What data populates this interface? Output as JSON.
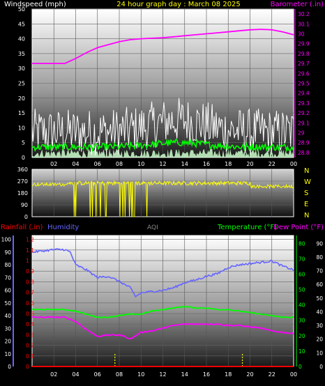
{
  "header": {
    "left_title": "Windspeed (mph)",
    "center_title": "24 hour graph day : March 08 2025",
    "right_title": "Barometer (.in)"
  },
  "colors": {
    "wind_title": "#ffffff",
    "center_title": "#ffff00",
    "baro": "#ff00ff",
    "wind_gust": "#ffffff",
    "wind_avg": "#00ff00",
    "wind_low": "#ccffcc",
    "direction": "#ffff00",
    "rain": "#ff0000",
    "humidity": "#6666ff",
    "aqi": "#888888",
    "temperature": "#00ff00",
    "dewpoint": "#ff00ff",
    "axis_text": "#ffffff"
  },
  "chart_data": [
    {
      "type": "line",
      "name": "wind-and-barometer",
      "x_tick_labels": [
        "02",
        "04",
        "06",
        "08",
        "10",
        "12",
        "14",
        "16",
        "18",
        "20",
        "22",
        "00"
      ],
      "y_left": {
        "label": "Windspeed (mph)",
        "ticks": [
          0,
          5,
          10,
          15,
          20,
          25,
          30,
          35,
          40,
          45,
          50
        ],
        "range": [
          0,
          50
        ]
      },
      "y_right": {
        "label": "Barometer (.in)",
        "ticks": [
          "28.8",
          "28.9",
          "29",
          "29.1",
          "29.2",
          "29.3",
          "29.4",
          "29.5",
          "29.6",
          "29.7",
          "29.8",
          "29.9",
          "30",
          "30.1",
          "30.2"
        ],
        "range": [
          28.75,
          30.25
        ]
      },
      "series": [
        {
          "key": "barometer",
          "axis": "right",
          "x": [
            0,
            1,
            2,
            3,
            4,
            5,
            6,
            7,
            8,
            9,
            10,
            11,
            12,
            13,
            14,
            15,
            16,
            17,
            18,
            19,
            20,
            21,
            22,
            23,
            24
          ],
          "values": [
            29.7,
            29.7,
            29.7,
            29.7,
            29.75,
            29.81,
            29.86,
            29.89,
            29.92,
            29.94,
            29.95,
            29.955,
            29.96,
            29.97,
            29.98,
            29.99,
            30.0,
            30.01,
            30.02,
            30.03,
            30.04,
            30.045,
            30.04,
            30.02,
            29.99
          ]
        },
        {
          "key": "gust",
          "axis": "left",
          "kind": "noisy",
          "base": 8.5,
          "spread": 8,
          "extra_peak": 4
        },
        {
          "key": "average",
          "axis": "left",
          "kind": "noisy",
          "base": 3.5,
          "spread": 1.2
        },
        {
          "key": "low",
          "axis": "left",
          "kind": "noisy",
          "base": 1.5,
          "spread": 1.5
        }
      ]
    },
    {
      "type": "line",
      "name": "wind-direction",
      "x_tick_labels": [],
      "y_left": {
        "ticks": [
          0,
          90,
          180,
          270,
          360
        ],
        "range": [
          0,
          360
        ]
      },
      "compass_labels": [
        "N",
        "W",
        "S",
        "E",
        "N"
      ],
      "series": [
        {
          "key": "direction",
          "base": 255,
          "spread": 30,
          "dropouts_between_hours": [
            3.8,
            11.0
          ]
        }
      ]
    },
    {
      "type": "line",
      "name": "rain-humidity-temperature",
      "legend": {
        "rain": "Rainfall (.in)",
        "humidity": "Humidity",
        "aqi": "AQI",
        "temperature": "Temperature (°F)",
        "dewpoint": "Dew Point (°F)"
      },
      "x_tick_labels": [
        "02",
        "04",
        "06",
        "08",
        "10",
        "12",
        "14",
        "16",
        "18",
        "20",
        "22",
        "00"
      ],
      "y_humidity": {
        "ticks": [
          0,
          10,
          20,
          30,
          40,
          50,
          60,
          70,
          80,
          90,
          100
        ],
        "range": [
          0,
          100
        ]
      },
      "y_rain": {
        "ticks": [
          "0",
          "0.1",
          "0.2",
          "0.3",
          "0.4",
          "0.5",
          "0.6",
          "0.7",
          "0.8",
          "0.9",
          "1",
          "1.1",
          "1.2"
        ],
        "range": [
          0,
          1.2
        ]
      },
      "y_temp": {
        "ticks": [
          0,
          10,
          20,
          30,
          40,
          50,
          60,
          70,
          80
        ],
        "range": [
          0,
          80
        ]
      },
      "y_dew": {
        "ticks": [
          0,
          10,
          20,
          30,
          40,
          50,
          60,
          70,
          80,
          90
        ],
        "range": [
          0,
          90
        ]
      },
      "series": [
        {
          "key": "humidity",
          "axis": "humidity",
          "x": [
            0,
            1,
            2,
            3,
            3.5,
            4,
            5,
            6,
            7,
            8,
            9,
            9.5,
            10,
            11,
            12,
            13,
            14,
            15,
            16,
            17,
            18,
            19,
            20,
            21,
            22,
            23,
            24
          ],
          "values": [
            90,
            91,
            92,
            92,
            90,
            80,
            76,
            70,
            71,
            67,
            62,
            55,
            58,
            59,
            60,
            62,
            66,
            68,
            71,
            73,
            78,
            80,
            81,
            82,
            83,
            79,
            76
          ]
        },
        {
          "key": "temperature",
          "axis": "temp",
          "x": [
            0,
            1,
            2,
            3,
            4,
            5,
            6,
            7,
            8,
            9,
            10,
            11,
            12,
            13,
            14,
            15,
            16,
            17,
            18,
            19,
            20,
            21,
            22,
            23,
            24
          ],
          "values": [
            37,
            37,
            37,
            37,
            36,
            34,
            32,
            32,
            33,
            34,
            34,
            36,
            37,
            38,
            39,
            38,
            38,
            37,
            37,
            36,
            35,
            34,
            33,
            32,
            32
          ]
        },
        {
          "key": "dewpoint",
          "axis": "dew",
          "x": [
            0,
            1,
            2,
            3,
            4,
            5,
            6,
            7,
            8,
            8.5,
            9,
            10,
            11,
            12,
            13,
            14,
            15,
            16,
            17,
            18,
            19,
            20,
            21,
            22,
            23,
            24
          ],
          "values": [
            36,
            36,
            36,
            36,
            33,
            27,
            22,
            23,
            23,
            22,
            20,
            25,
            26,
            28,
            30,
            31,
            31,
            31,
            31,
            30,
            30,
            29,
            28,
            26,
            25,
            24
          ]
        },
        {
          "key": "rain",
          "axis": "rain",
          "x": [
            0,
            24
          ],
          "values": [
            0,
            0
          ]
        }
      ],
      "aqi_markers_hour": [
        7.6,
        19.3
      ]
    }
  ]
}
